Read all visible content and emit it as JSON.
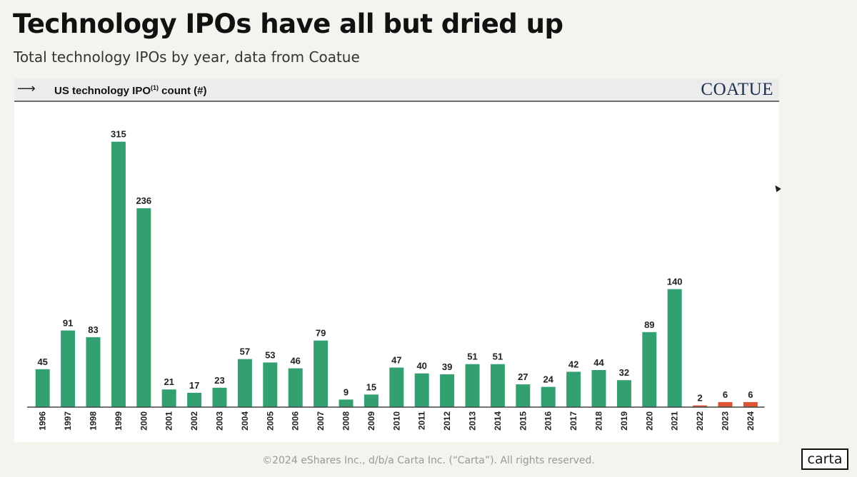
{
  "page": {
    "title": "Technology IPOs have all but dried up",
    "subtitle": "Total technology IPOs by year, data from Coatue",
    "footer": "©2024 eShares Inc., d/b/a Carta Inc. (“Carta”). All rights reserved.",
    "logo_text": "carta"
  },
  "panel": {
    "arrow_icon": "long-arrow-right",
    "header_label": "US technology IPO",
    "header_superscript": "(1)",
    "header_suffix": " count (#)",
    "brand": "COATUE"
  },
  "colors": {
    "bar": "#33a071",
    "highlight_bar": "#dc5336",
    "axis": "#444444"
  },
  "chart_data": {
    "type": "bar",
    "title": "US technology IPO(1) count (#)",
    "xlabel": "",
    "ylabel": "",
    "ylim": [
      0,
      330
    ],
    "categories": [
      "1996",
      "1997",
      "1998",
      "1999",
      "2000",
      "2001",
      "2002",
      "2003",
      "2004",
      "2005",
      "2006",
      "2007",
      "2008",
      "2009",
      "2010",
      "2011",
      "2012",
      "2013",
      "2014",
      "2015",
      "2016",
      "2017",
      "2018",
      "2019",
      "2020",
      "2021",
      "2022",
      "2023",
      "2024"
    ],
    "values": [
      45,
      91,
      83,
      315,
      236,
      21,
      17,
      23,
      57,
      53,
      46,
      79,
      9,
      15,
      47,
      40,
      39,
      51,
      51,
      27,
      24,
      42,
      44,
      32,
      89,
      140,
      2,
      6,
      6
    ],
    "highlight_categories": [
      "2022",
      "2023",
      "2024"
    ],
    "grid": false,
    "legend": "none"
  }
}
